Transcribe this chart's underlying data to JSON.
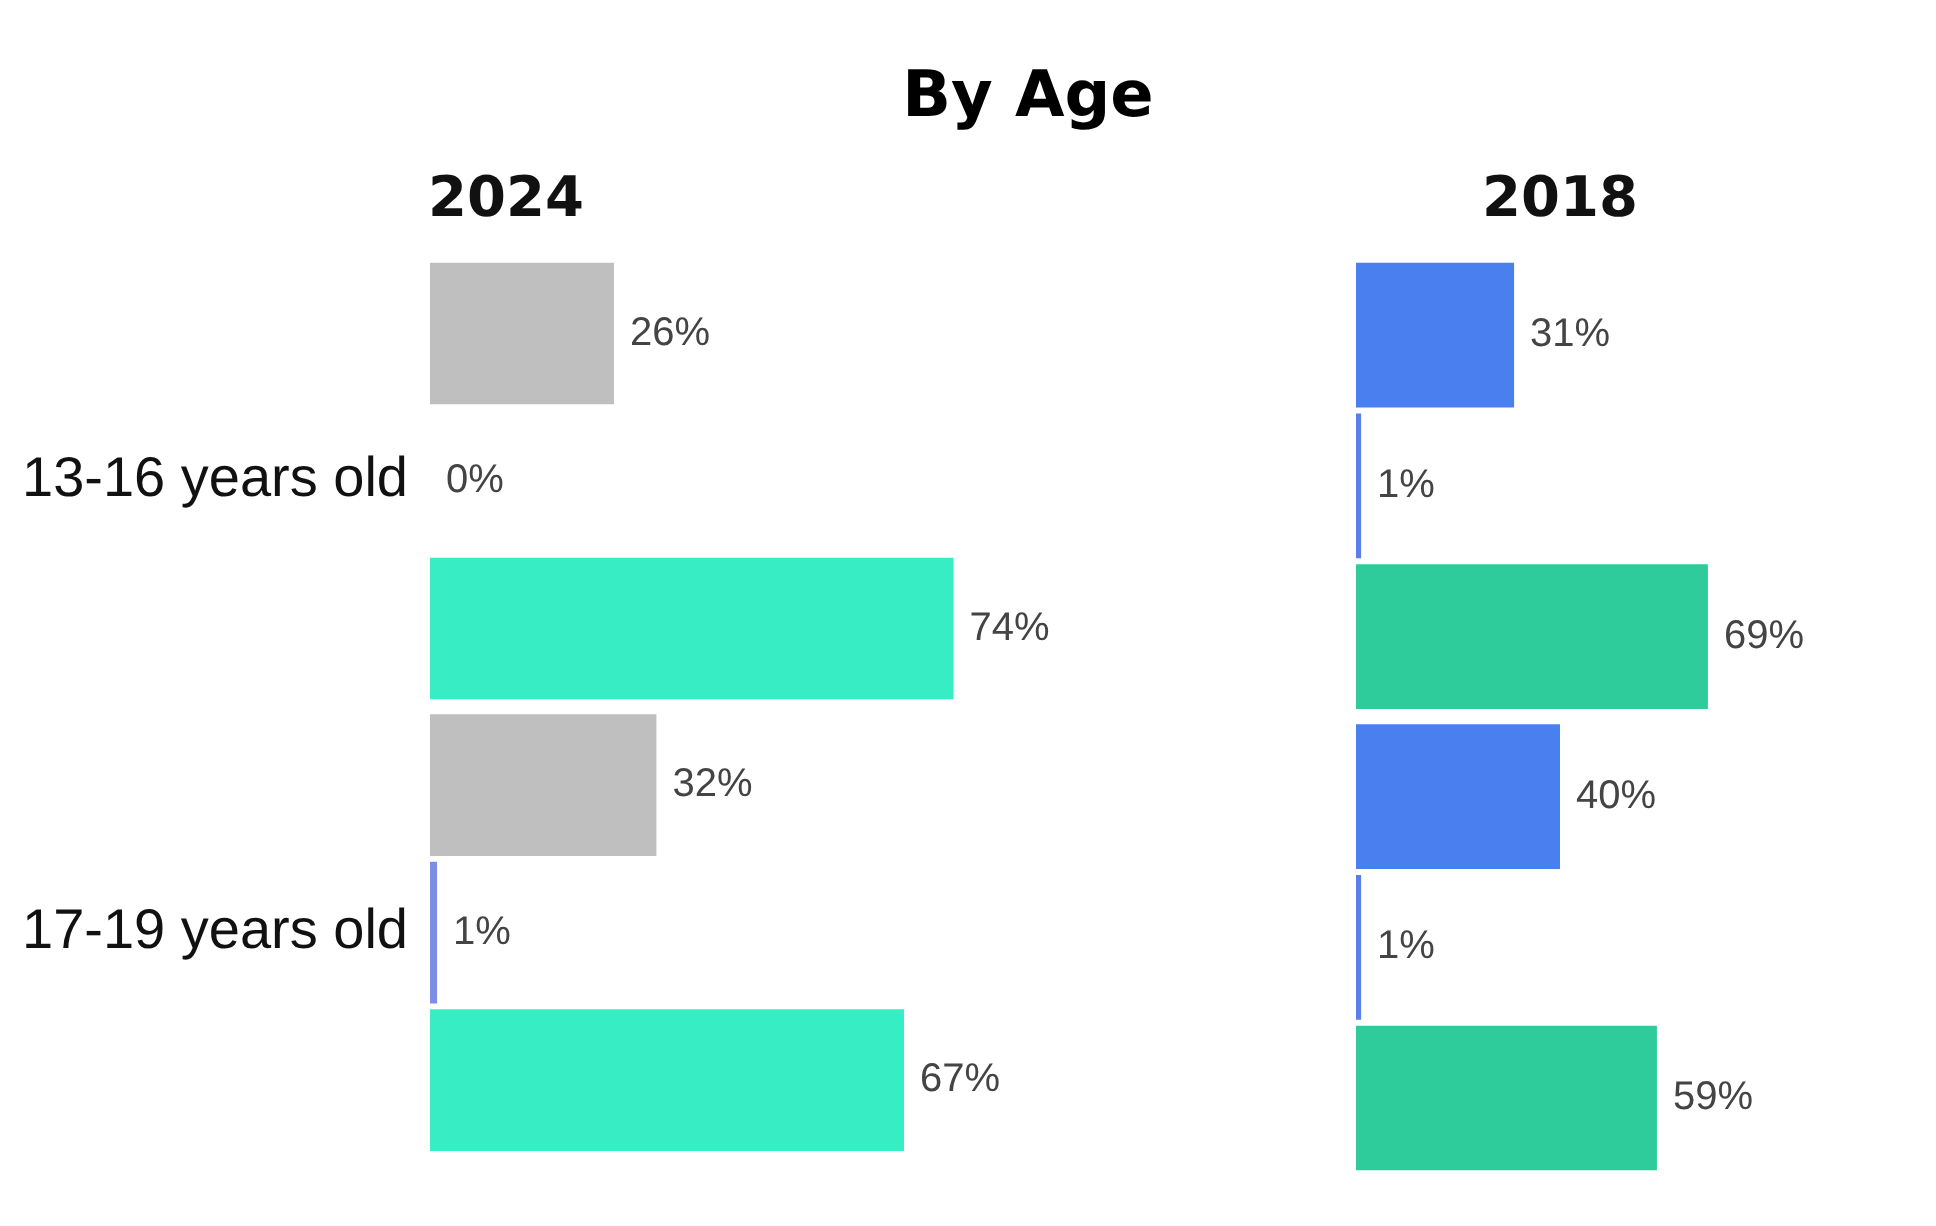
{
  "chart_data": [
    {
      "type": "bar",
      "orientation": "horizontal",
      "title": "By Age",
      "subtitle": "2024",
      "categories": [
        "13-16 years old",
        "17-19 years old"
      ],
      "tick_labels": "y",
      "legend": false,
      "series": [
        {
          "color": "#bfbfbf",
          "values": [
            26,
            32
          ],
          "value_labels": [
            "26%",
            "32%"
          ]
        },
        {
          "color": "#7b8ee6",
          "values": [
            0,
            1
          ],
          "value_labels": [
            "0%",
            "1%"
          ]
        },
        {
          "color": "#36edc4",
          "values": [
            74,
            67
          ],
          "value_labels": [
            "74%",
            "67%"
          ]
        }
      ]
    },
    {
      "type": "bar",
      "orientation": "horizontal",
      "subtitle": "2018",
      "categories": [
        null,
        null
      ],
      "tick_labels": false,
      "legend": false,
      "series": [
        {
          "color": "#4a7ff0",
          "values": [
            31,
            40
          ],
          "value_labels": [
            "31%",
            "40%"
          ]
        },
        {
          "color": "#5b7fe8",
          "values": [
            1,
            1
          ],
          "value_labels": [
            "1%",
            "1%"
          ]
        },
        {
          "color": "#2ecc9a",
          "values": [
            69,
            59
          ],
          "value_labels": [
            "69%",
            "59%"
          ]
        }
      ]
    }
  ]
}
